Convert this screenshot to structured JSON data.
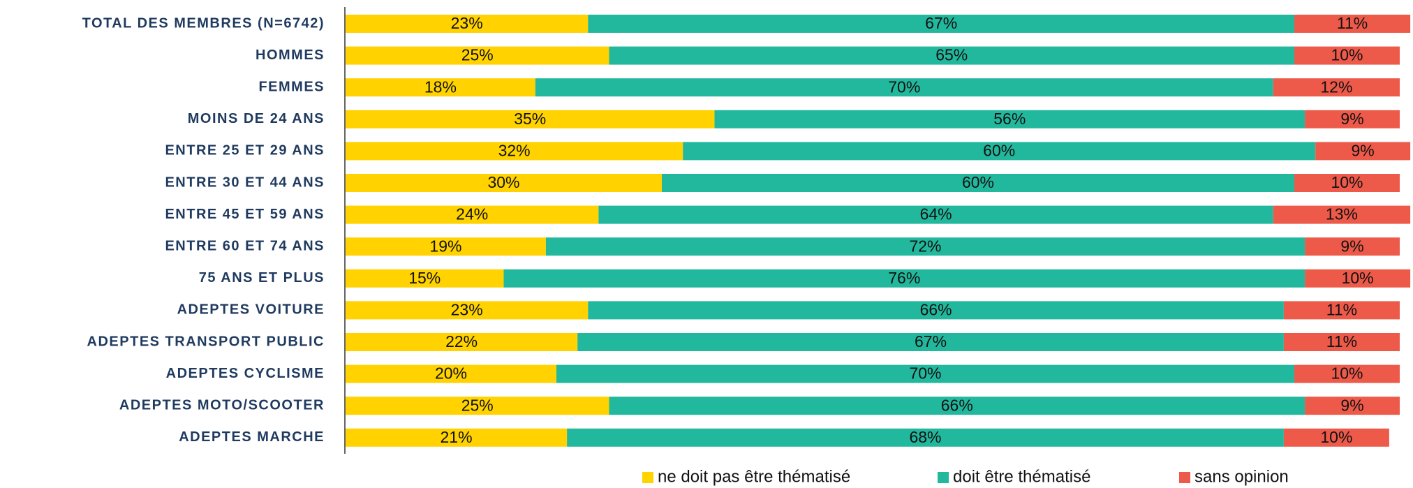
{
  "chart_data": {
    "type": "stacked-bar-horizontal",
    "categories": [
      "TOTAL DES MEMBRES (N=6742)",
      "HOMMES",
      "FEMMES",
      "MOINS DE  24 ANS",
      "ENTRE 25 ET 29 ANS",
      "ENTRE 30 ET 44 ANS",
      "ENTRE 45 ET 59 ANS",
      "ENTRE 60 ET 74 ANS",
      "75 ANS ET PLUS",
      "ADEPTES VOITURE",
      "ADEPTES TRANSPORT PUBLIC",
      "ADEPTES CYCLISME ",
      "ADEPTES MOTO/SCOOTER",
      "ADEPTES MARCHE"
    ],
    "series": [
      {
        "name": "ne doit pas être thématisé",
        "color": "#FFD200",
        "values": [
          23,
          25,
          18,
          35,
          32,
          30,
          24,
          19,
          15,
          23,
          22,
          20,
          25,
          21
        ],
        "value_labels": [
          "23%",
          "25%",
          "18%",
          "35%",
          "32%",
          "30%",
          "24%",
          "19%",
          "15%",
          "23%",
          "22%",
          "20%",
          "25%",
          "21%"
        ]
      },
      {
        "name": "doit être thématisé",
        "color": "#22B89E",
        "values": [
          67,
          65,
          70,
          56,
          60,
          60,
          64,
          72,
          76,
          66,
          67,
          70,
          66,
          68
        ],
        "value_labels": [
          "67%",
          "65%",
          "70%",
          "56%",
          "60%",
          "60%",
          "64%",
          "72%",
          "76%",
          "66%",
          "67%",
          "70%",
          "66%",
          "68%"
        ]
      },
      {
        "name": "sans opinion",
        "color": "#EE5A4A",
        "values": [
          11,
          10,
          12,
          9,
          9,
          10,
          13,
          9,
          10,
          11,
          11,
          10,
          9,
          10
        ],
        "value_labels": [
          "11%",
          "10%",
          "12%",
          "9%",
          "9%",
          "10%",
          "13%",
          "9%",
          "10%",
          "11%",
          "11%",
          "10%",
          "9%",
          "10%"
        ]
      }
    ],
    "legend": "bottom"
  }
}
